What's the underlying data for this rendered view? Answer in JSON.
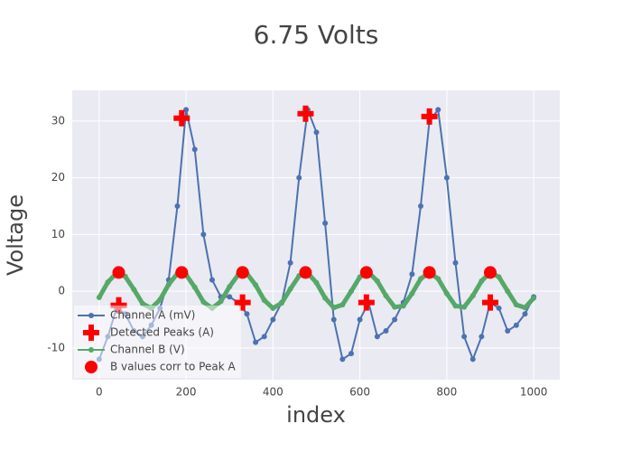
{
  "chart_data": {
    "type": "scatter",
    "title": "6.75 Volts",
    "x_label": "index",
    "y_label": "Voltage",
    "xlim": [
      -62,
      1060
    ],
    "ylim": [
      -15.6,
      35.4
    ],
    "xticks": [
      0,
      200,
      400,
      600,
      800,
      1000
    ],
    "yticks": [
      -10,
      0,
      10,
      20,
      30
    ],
    "grid": true,
    "legend_position": "bottom-left",
    "series": [
      {
        "name": "Channel A (mV)",
        "color": "#4c72b0",
        "mode": "lines+markers",
        "marker": "circle",
        "x": [
          0,
          20,
          40,
          60,
          80,
          100,
          120,
          140,
          160,
          180,
          200,
          220,
          240,
          260,
          280,
          300,
          320,
          340,
          360,
          380,
          400,
          420,
          440,
          460,
          480,
          500,
          520,
          540,
          560,
          580,
          600,
          620,
          640,
          660,
          680,
          700,
          720,
          740,
          760,
          780,
          800,
          820,
          840,
          860,
          880,
          900,
          920,
          940,
          960,
          980,
          1000
        ],
        "values": [
          -12,
          -8,
          -3,
          -4,
          -7,
          -8,
          -6,
          -3,
          2,
          15,
          32,
          25,
          10,
          2,
          -1,
          -1,
          -2,
          -4,
          -9,
          -8,
          -5,
          -2,
          5,
          20,
          32,
          28,
          12,
          -5,
          -12,
          -11,
          -5,
          -2,
          -8,
          -7,
          -5,
          -2,
          3,
          15,
          30,
          32,
          20,
          5,
          -8,
          -12,
          -8,
          -2,
          -3,
          -7,
          -6,
          -4,
          -1
        ]
      },
      {
        "name": "Detected Peaks (A)",
        "color": "#ff0000",
        "mode": "markers",
        "marker": "cross",
        "x": [
          45,
          190,
          330,
          475,
          615,
          760,
          900
        ],
        "values": [
          -2.5,
          30.5,
          -2,
          31.3,
          -2,
          30.8,
          -2
        ]
      },
      {
        "name": "Channel B (V)",
        "color": "#55a868",
        "mode": "lines+markers",
        "marker": "circle",
        "x": [
          0,
          20,
          40,
          60,
          80,
          100,
          120,
          140,
          160,
          180,
          200,
          220,
          240,
          260,
          280,
          300,
          320,
          340,
          360,
          380,
          400,
          420,
          440,
          460,
          480,
          500,
          520,
          540,
          560,
          580,
          600,
          620,
          640,
          660,
          680,
          700,
          720,
          740,
          760,
          780,
          800,
          820,
          840,
          860,
          880,
          900,
          920,
          940,
          960,
          980,
          1000
        ],
        "values": [
          -1.1,
          1.6,
          3.2,
          2.6,
          0.3,
          -2.2,
          -3.0,
          -1.5,
          1.2,
          3.1,
          2.9,
          0.7,
          -1.9,
          -3.0,
          -1.8,
          0.8,
          2.9,
          3.1,
          1.1,
          -1.6,
          -3.0,
          -2.1,
          0.4,
          2.7,
          3.2,
          1.5,
          -1.2,
          -2.9,
          -2.4,
          0.0,
          2.5,
          3.3,
          1.8,
          -0.8,
          -2.8,
          -2.6,
          -0.4,
          2.2,
          3.3,
          2.2,
          -0.4,
          -2.6,
          -2.8,
          -0.8,
          1.8,
          3.3,
          2.5,
          0.0,
          -2.4,
          -2.9,
          -1.2
        ]
      },
      {
        "name": "B values corr to Peak A",
        "color": "#ff0000",
        "mode": "markers",
        "marker": "big-circle",
        "x": [
          45,
          190,
          330,
          475,
          615,
          760,
          900
        ],
        "values": [
          3.3,
          3.3,
          3.3,
          3.3,
          3.3,
          3.3,
          3.3
        ]
      }
    ]
  }
}
